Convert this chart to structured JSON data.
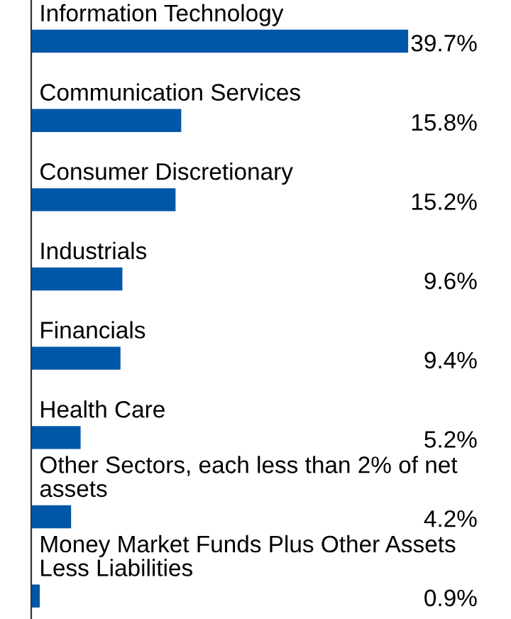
{
  "chart_data": {
    "type": "bar",
    "orientation": "horizontal",
    "categories": [
      "Information Technology",
      "Communication Services",
      "Consumer Discretionary",
      "Industrials",
      "Financials",
      "Health Care",
      "Other Sectors, each less than 2% of net assets",
      "Money Market Funds Plus Other Assets Less Liabilities"
    ],
    "values": [
      39.7,
      15.8,
      15.2,
      9.6,
      9.4,
      5.2,
      4.2,
      0.9
    ],
    "value_labels": [
      "39.7%",
      "15.8%",
      "15.2%",
      "9.6%",
      "9.4%",
      "5.2%",
      "4.2%",
      "0.9%"
    ],
    "color": "#0057a8"
  }
}
